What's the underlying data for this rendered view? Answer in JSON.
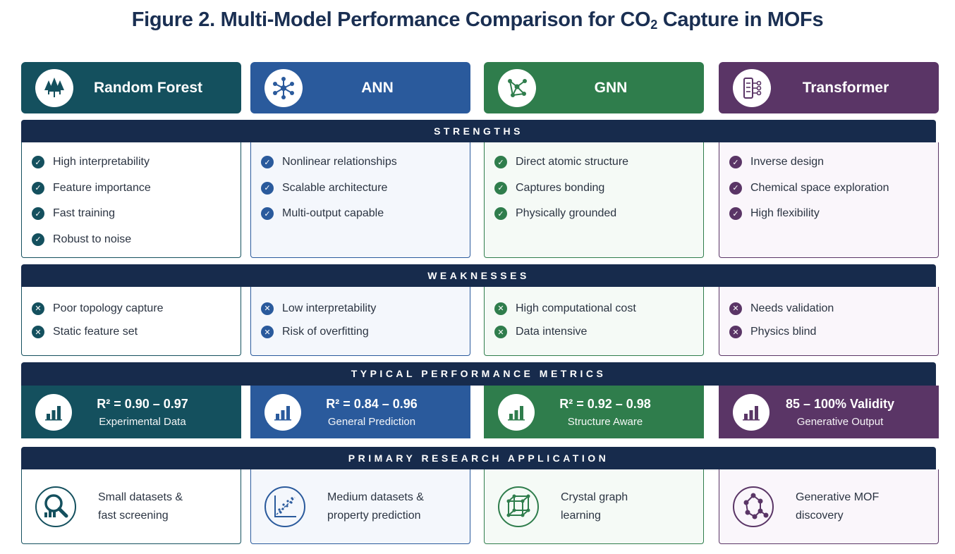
{
  "title": "Figure 2. Multi-Model Performance Comparison for CO",
  "title_sub": "2",
  "title_tail": " Capture in MOFs",
  "sections": {
    "strengths": "STRENGTHS",
    "weaknesses": "WEAKNESSES",
    "metrics": "TYPICAL PERFORMANCE METRICS",
    "application": "PRIMARY RESEARCH APPLICATION"
  },
  "models": [
    {
      "name": "Random Forest",
      "icon": "trees-icon",
      "color": "#14505e",
      "light": "#ffffff",
      "strengths": [
        "High interpretability",
        "Feature importance",
        "Fast training",
        "Robust to noise"
      ],
      "weaknesses": [
        "Poor topology capture",
        "Static feature set"
      ],
      "metric_value": "R² = 0.90 – 0.97",
      "metric_label": "Experimental Data",
      "application": [
        "Small datasets &",
        "fast screening"
      ],
      "app_icon": "magnifier-chart-icon"
    },
    {
      "name": "ANN",
      "icon": "neural-network-icon",
      "color": "#2a5a9c",
      "light": "#f4f7fc",
      "strengths": [
        "Nonlinear relationships",
        "Scalable architecture",
        "Multi-output capable"
      ],
      "weaknesses": [
        "Low interpretability",
        "Risk of overfitting"
      ],
      "metric_value": "R² = 0.84 – 0.96",
      "metric_label": "General Prediction",
      "application": [
        "Medium datasets &",
        "property prediction"
      ],
      "app_icon": "scatter-plot-icon"
    },
    {
      "name": "GNN",
      "icon": "graph-icon",
      "color": "#2f7d4c",
      "light": "#f5faf6",
      "strengths": [
        "Direct atomic structure",
        "Captures bonding",
        "Physically grounded"
      ],
      "weaknesses": [
        "High computational cost",
        "Data intensive"
      ],
      "metric_value": "R² = 0.92 – 0.98",
      "metric_label": "Structure Aware",
      "application": [
        "Crystal graph",
        "learning"
      ],
      "app_icon": "crystal-cube-icon"
    },
    {
      "name": "Transformer",
      "icon": "transformer-icon",
      "color": "#5a3566",
      "light": "#faf6fb",
      "strengths": [
        "Inverse design",
        "Chemical space exploration",
        "High flexibility"
      ],
      "weaknesses": [
        "Needs validation",
        "Physics blind"
      ],
      "metric_value": "85 – 100% Validity",
      "metric_label": "Generative Output",
      "application": [
        "Generative MOF",
        "discovery"
      ],
      "app_icon": "molecule-icon"
    }
  ]
}
